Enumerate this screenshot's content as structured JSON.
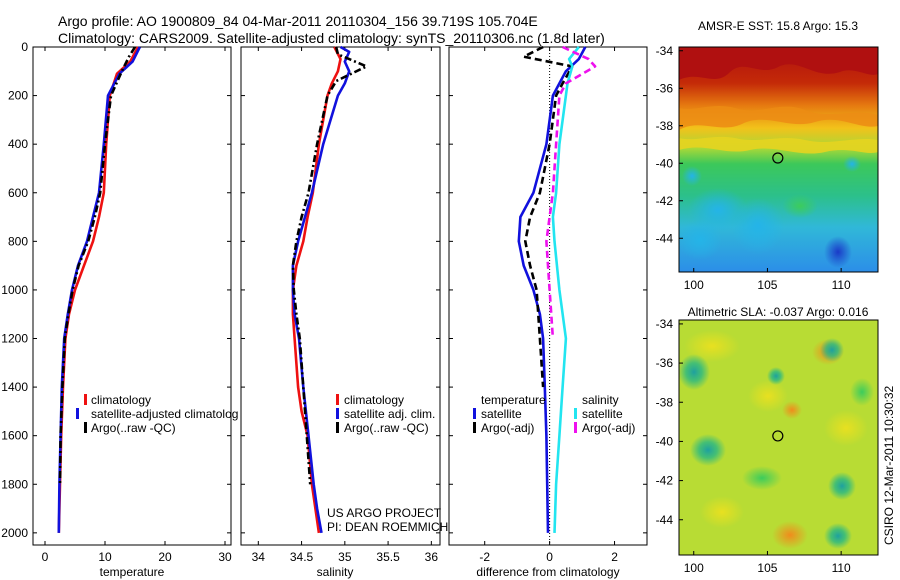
{
  "header": {
    "line1": "Argo profile: AO 1900809_84 04-Mar-2011 20110304_156 39.719S 105.704E",
    "line2": "Climatology: CARS2009. Satellite-adjusted climatology: synTS_20110306.nc (1.8d later)"
  },
  "credit": {
    "line1": "US ARGO PROJECT",
    "line2": "PI: DEAN ROEMMICH",
    "vertical": "CSIRO 12-Mar-2011 10:30:32"
  },
  "colors": {
    "climatology": "#ee1111",
    "satellite": "#1111dd",
    "argo": "#000000",
    "satellite_salinity": "#22e5f0",
    "argo_salinity": "#ee11ee"
  },
  "chart_data": [
    {
      "type": "line",
      "name": "temperature",
      "xlabel": "temperature",
      "ylabel": "",
      "xlim": [
        -2,
        31
      ],
      "ylim": [
        2050,
        0
      ],
      "xticks": [
        "0",
        "10",
        "20",
        "30"
      ],
      "xtick_values": [
        0,
        10,
        20,
        30
      ],
      "yticks": [
        "0",
        "200",
        "400",
        "600",
        "800",
        "1000",
        "1200",
        "1400",
        "1600",
        "1800",
        "2000"
      ],
      "ytick_values": [
        0,
        200,
        400,
        600,
        800,
        1000,
        1200,
        1400,
        1600,
        1800,
        2000
      ],
      "legend": [
        "climatology",
        "satellite-adjusted climatolog",
        "Argo(..raw -QC)"
      ],
      "series": [
        {
          "name": "climatology",
          "color": "#ee1111",
          "style": "solid",
          "x": [
            15.5,
            14.2,
            12.0,
            10.8,
            10.2,
            9.8,
            9.0,
            8.0,
            6.5,
            5.0,
            4.0,
            3.4,
            3.0,
            2.7,
            2.5,
            2.3
          ],
          "y": [
            0,
            60,
            110,
            200,
            400,
            600,
            700,
            800,
            900,
            1000,
            1100,
            1200,
            1400,
            1600,
            1800,
            2000
          ]
        },
        {
          "name": "satellite",
          "color": "#1111dd",
          "style": "solid",
          "x": [
            15.8,
            14.6,
            12.4,
            10.5,
            9.8,
            9.0,
            8.0,
            7.0,
            5.5,
            4.5,
            3.8,
            3.2,
            2.8,
            2.6,
            2.4,
            2.3
          ],
          "y": [
            0,
            60,
            110,
            200,
            400,
            600,
            700,
            800,
            900,
            1000,
            1100,
            1200,
            1400,
            1600,
            1800,
            2000
          ]
        },
        {
          "name": "argo",
          "color": "#000000",
          "style": "dashdot",
          "x": [
            15.0,
            14.0,
            12.8,
            11.0,
            10.0,
            9.2,
            8.3,
            7.2,
            5.6,
            4.6,
            3.9,
            3.3,
            2.9,
            2.6,
            2.5
          ],
          "y": [
            0,
            40,
            100,
            200,
            400,
            600,
            700,
            800,
            900,
            1000,
            1100,
            1200,
            1400,
            1600,
            1800
          ]
        }
      ]
    },
    {
      "type": "line",
      "name": "salinity",
      "xlabel": "salinity",
      "xlim": [
        33.8,
        36.1
      ],
      "ylim": [
        2050,
        0
      ],
      "xticks": [
        "34",
        "34.5",
        "35",
        "35.5",
        "36"
      ],
      "xtick_values": [
        34,
        34.5,
        35,
        35.5,
        36
      ],
      "legend": [
        "climatology",
        "satellite adj. clim.",
        "Argo(..raw -QC)"
      ],
      "series": [
        {
          "name": "climatology",
          "color": "#ee1111",
          "style": "solid",
          "x": [
            34.88,
            34.95,
            34.92,
            34.85,
            34.8,
            34.7,
            34.63,
            34.57,
            34.52,
            34.44,
            34.4,
            34.4,
            34.42,
            34.46,
            34.5,
            34.57,
            34.62,
            34.66,
            34.7
          ],
          "y": [
            0,
            50,
            100,
            150,
            200,
            400,
            600,
            700,
            800,
            900,
            1000,
            1100,
            1200,
            1400,
            1500,
            1600,
            1800,
            1900,
            2000
          ]
        },
        {
          "name": "satellite",
          "color": "#1111dd",
          "style": "solid",
          "x": [
            34.95,
            35.05,
            35.0,
            35.05,
            35.0,
            34.92,
            34.75,
            34.62,
            34.54,
            34.46,
            34.4,
            34.4,
            34.42,
            34.47,
            34.52,
            34.58,
            34.64,
            34.68,
            34.73
          ],
          "y": [
            0,
            20,
            60,
            100,
            150,
            200,
            400,
            600,
            700,
            800,
            900,
            1000,
            1100,
            1200,
            1400,
            1600,
            1800,
            1900,
            2000
          ]
        },
        {
          "name": "argo",
          "color": "#000000",
          "style": "dashdot",
          "x": [
            34.9,
            34.92,
            35.25,
            34.9,
            34.8,
            34.68,
            34.58,
            34.5,
            34.44,
            34.4,
            34.41,
            34.44,
            34.48,
            34.52,
            34.56,
            34.6
          ],
          "y": [
            0,
            30,
            80,
            140,
            200,
            400,
            600,
            700,
            800,
            900,
            1000,
            1100,
            1200,
            1400,
            1600,
            1800
          ]
        }
      ]
    },
    {
      "type": "line",
      "name": "difference",
      "xlabel": "difference from climatology",
      "xlim": [
        -3.1,
        3.0
      ],
      "ylim": [
        2050,
        0
      ],
      "xticks": [
        "-2",
        "0",
        "2"
      ],
      "xtick_values": [
        -2,
        0,
        2
      ],
      "legend_headers": [
        "temperature",
        "salinity"
      ],
      "legend": [
        "satellite",
        "Argo(-adj)",
        "satellite",
        "Argo(-adj)"
      ],
      "series": [
        {
          "name": "temperature satellite",
          "color": "#1111dd",
          "style": "solid",
          "x": [
            1.1,
            0.9,
            0.5,
            0.3,
            0.1,
            -0.1,
            -0.5,
            -0.9,
            -0.95,
            -0.8,
            -0.5,
            -0.3,
            -0.2,
            -0.15,
            -0.1,
            -0.05
          ],
          "y": [
            0,
            50,
            100,
            150,
            200,
            400,
            600,
            700,
            800,
            900,
            1000,
            1100,
            1200,
            1400,
            1600,
            2000
          ]
        },
        {
          "name": "temperature argo",
          "color": "#000000",
          "style": "dashed",
          "x": [
            -0.2,
            -0.8,
            0.7,
            0.4,
            0.2,
            0.0,
            -0.3,
            -0.6,
            -0.75,
            -0.6,
            -0.4,
            -0.3,
            -0.2
          ],
          "y": [
            0,
            40,
            80,
            150,
            200,
            400,
            600,
            700,
            800,
            900,
            1000,
            1200,
            1400
          ]
        },
        {
          "name": "salinity satellite",
          "color": "#22e5f0",
          "style": "solid",
          "x": [
            0.9,
            0.6,
            0.7,
            0.55,
            0.5,
            0.3,
            0.2,
            0.1,
            0.15,
            0.3,
            0.5,
            0.4,
            0.3,
            0.2,
            0.15
          ],
          "y": [
            0,
            50,
            80,
            150,
            200,
            400,
            600,
            700,
            800,
            1000,
            1200,
            1400,
            1600,
            1800,
            2000
          ]
        },
        {
          "name": "salinity argo",
          "color": "#ee11ee",
          "style": "dashed",
          "x": [
            0.4,
            1.2,
            1.4,
            0.5,
            0.3,
            0.2,
            0.1,
            0.0,
            -0.1,
            -0.05,
            0.0,
            0.1
          ],
          "y": [
            0,
            50,
            80,
            150,
            200,
            400,
            600,
            700,
            800,
            900,
            1000,
            1200
          ]
        }
      ]
    },
    {
      "type": "heatmap",
      "name": "sst",
      "title": "AMSR-E SST: 15.8  Argo: 15.3",
      "xticks": [
        "100",
        "105",
        "110"
      ],
      "xtick_values": [
        100,
        105,
        110
      ],
      "yticks": [
        "-34",
        "-36",
        "-38",
        "-40",
        "-42",
        "-44"
      ],
      "ytick_values": [
        -34,
        -36,
        -38,
        -40,
        -42,
        -44
      ],
      "xlim": [
        99,
        112.5
      ],
      "ylim": [
        -45.8,
        -33.8
      ],
      "marker": {
        "lon": 105.704,
        "lat": -39.719
      }
    },
    {
      "type": "heatmap",
      "name": "sla",
      "title": "Altimetric SLA: -0.037  Argo: 0.016",
      "xticks": [
        "100",
        "105",
        "110"
      ],
      "xtick_values": [
        100,
        105,
        110
      ],
      "yticks": [
        "-34",
        "-36",
        "-38",
        "-40",
        "-42",
        "-44"
      ],
      "ytick_values": [
        -34,
        -36,
        -38,
        -40,
        -42,
        -44
      ],
      "xlim": [
        99,
        112.5
      ],
      "ylim": [
        -45.8,
        -33.8
      ],
      "marker": {
        "lon": 105.704,
        "lat": -39.719
      }
    }
  ]
}
